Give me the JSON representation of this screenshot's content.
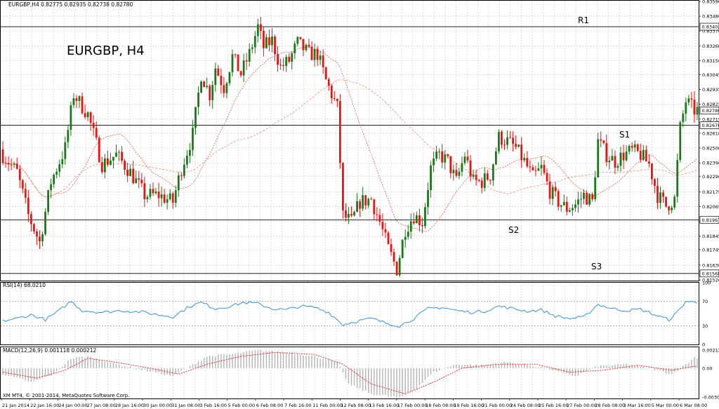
{
  "header": {
    "info": "EURGBP,H4  0.82775 0.82935 0.82738 0.82780",
    "big_title": "EURGBP, H4"
  },
  "footer": {
    "copyright": "XM MT4, © 2001-2014, MetaQuotes Software Corp."
  },
  "colors": {
    "bull": "#1a7a1a",
    "bear": "#ee1111",
    "grid": "#c8c8c8",
    "ma": "#e06040",
    "rsi": "#3b8fd9",
    "hist": "#b4b4b4",
    "signal": "#dd2222"
  },
  "chart_data": [
    {
      "type": "candlestick",
      "title": "EURGBP, H4",
      "ylim": [
        0.8152,
        0.8359
      ],
      "y_ticks": [
        "0.83590",
        "0.83480",
        "0.83370",
        "0.83260",
        "0.83150",
        "0.83045",
        "0.82935",
        "0.82825",
        "0.82715",
        "0.82610",
        "0.82500",
        "0.82390",
        "0.82290",
        "0.82175",
        "0.82065",
        "0.81955",
        "0.81845",
        "0.81745",
        "0.81630",
        "0.81520"
      ],
      "current_price": {
        "label": "0.82780",
        "value": 0.8278
      },
      "levels": [
        {
          "name": "R1",
          "label": "0.83402",
          "value": 0.83402
        },
        {
          "name": "S1",
          "label": "0.82670",
          "value": 0.8267
        },
        {
          "name": "S2",
          "label": "0.81967",
          "value": 0.81967
        },
        {
          "name": "S3",
          "label": "0.81568",
          "value": 0.81568
        }
      ],
      "x_labels": [
        "21 Jan 2014",
        "22 Jan 16:00",
        "24 Jan 00:00",
        "27 Jan 08:00",
        "28 Jan 16:00",
        "30 Jan 00:00",
        "31 Jan 08:00",
        "3 Feb 16:00",
        "5 Feb 00:00",
        "6 Feb 08:00",
        "7 Feb 16:00",
        "11 Feb 00:00",
        "12 Feb 08:00",
        "13 Feb 16:00",
        "17 Feb 00:00",
        "18 Feb 08:00",
        "19 Feb 16:00",
        "21 Feb 00:00",
        "24 Feb 08:00",
        "25 Feb 16:00",
        "27 Feb 00:00",
        "28 Feb 08:00",
        "3 Mar 16:00",
        "5 Mar 00:00",
        "6 Mar 08:00"
      ],
      "close_path": [
        {
          "i": 0,
          "v": 0.8245
        },
        {
          "i": 5,
          "v": 0.8232
        },
        {
          "i": 9,
          "v": 0.82
        },
        {
          "i": 13,
          "v": 0.818
        },
        {
          "i": 17,
          "v": 0.8225
        },
        {
          "i": 22,
          "v": 0.825
        },
        {
          "i": 25,
          "v": 0.829
        },
        {
          "i": 30,
          "v": 0.8275
        },
        {
          "i": 35,
          "v": 0.8238
        },
        {
          "i": 40,
          "v": 0.8245
        },
        {
          "i": 45,
          "v": 0.8232
        },
        {
          "i": 50,
          "v": 0.8215
        },
        {
          "i": 55,
          "v": 0.8215
        },
        {
          "i": 60,
          "v": 0.821
        },
        {
          "i": 63,
          "v": 0.8235
        },
        {
          "i": 67,
          "v": 0.826
        },
        {
          "i": 70,
          "v": 0.8305
        },
        {
          "i": 73,
          "v": 0.829
        },
        {
          "i": 75,
          "v": 0.831
        },
        {
          "i": 78,
          "v": 0.8295
        },
        {
          "i": 81,
          "v": 0.8318
        },
        {
          "i": 84,
          "v": 0.8305
        },
        {
          "i": 87,
          "v": 0.832
        },
        {
          "i": 90,
          "v": 0.834
        },
        {
          "i": 92,
          "v": 0.8325
        },
        {
          "i": 95,
          "v": 0.833
        },
        {
          "i": 98,
          "v": 0.831
        },
        {
          "i": 101,
          "v": 0.8315
        },
        {
          "i": 104,
          "v": 0.8328
        },
        {
          "i": 108,
          "v": 0.832
        },
        {
          "i": 111,
          "v": 0.832
        },
        {
          "i": 114,
          "v": 0.83
        },
        {
          "i": 118,
          "v": 0.828
        },
        {
          "i": 120,
          "v": 0.82
        },
        {
          "i": 123,
          "v": 0.8195
        },
        {
          "i": 126,
          "v": 0.821
        },
        {
          "i": 130,
          "v": 0.8212
        },
        {
          "i": 133,
          "v": 0.8195
        },
        {
          "i": 136,
          "v": 0.8175
        },
        {
          "i": 139,
          "v": 0.816
        },
        {
          "i": 142,
          "v": 0.819
        },
        {
          "i": 145,
          "v": 0.82
        },
        {
          "i": 148,
          "v": 0.8195
        },
        {
          "i": 151,
          "v": 0.8235
        },
        {
          "i": 154,
          "v": 0.8245
        },
        {
          "i": 157,
          "v": 0.824
        },
        {
          "i": 160,
          "v": 0.8225
        },
        {
          "i": 163,
          "v": 0.8245
        },
        {
          "i": 166,
          "v": 0.8225
        },
        {
          "i": 169,
          "v": 0.8225
        },
        {
          "i": 172,
          "v": 0.823
        },
        {
          "i": 175,
          "v": 0.8258
        },
        {
          "i": 178,
          "v": 0.8255
        },
        {
          "i": 181,
          "v": 0.825
        },
        {
          "i": 184,
          "v": 0.824
        },
        {
          "i": 187,
          "v": 0.8228
        },
        {
          "i": 190,
          "v": 0.8235
        },
        {
          "i": 193,
          "v": 0.8218
        },
        {
          "i": 196,
          "v": 0.821
        },
        {
          "i": 199,
          "v": 0.8205
        },
        {
          "i": 202,
          "v": 0.8208
        },
        {
          "i": 205,
          "v": 0.8215
        },
        {
          "i": 208,
          "v": 0.821
        },
        {
          "i": 210,
          "v": 0.8255
        },
        {
          "i": 213,
          "v": 0.8245
        },
        {
          "i": 216,
          "v": 0.824
        },
        {
          "i": 219,
          "v": 0.8245
        },
        {
          "i": 222,
          "v": 0.8248
        },
        {
          "i": 225,
          "v": 0.8245
        },
        {
          "i": 228,
          "v": 0.8238
        },
        {
          "i": 231,
          "v": 0.8215
        },
        {
          "i": 234,
          "v": 0.8207
        },
        {
          "i": 237,
          "v": 0.8212
        },
        {
          "i": 239,
          "v": 0.8265
        },
        {
          "i": 241,
          "v": 0.8285
        },
        {
          "i": 244,
          "v": 0.8278
        }
      ]
    },
    {
      "type": "line",
      "title": "RSI(14) 68.0210",
      "ylim": [
        0,
        100
      ],
      "y_ticks": [
        "100",
        "70",
        "30",
        "0"
      ],
      "path": [
        {
          "i": 0,
          "v": 38
        },
        {
          "i": 5,
          "v": 42
        },
        {
          "i": 10,
          "v": 48
        },
        {
          "i": 15,
          "v": 40
        },
        {
          "i": 20,
          "v": 55
        },
        {
          "i": 24,
          "v": 70
        },
        {
          "i": 28,
          "v": 55
        },
        {
          "i": 35,
          "v": 52
        },
        {
          "i": 42,
          "v": 55
        },
        {
          "i": 50,
          "v": 52
        },
        {
          "i": 55,
          "v": 48
        },
        {
          "i": 60,
          "v": 45
        },
        {
          "i": 66,
          "v": 62
        },
        {
          "i": 70,
          "v": 68
        },
        {
          "i": 75,
          "v": 58
        },
        {
          "i": 80,
          "v": 62
        },
        {
          "i": 85,
          "v": 68
        },
        {
          "i": 90,
          "v": 66
        },
        {
          "i": 95,
          "v": 58
        },
        {
          "i": 100,
          "v": 56
        },
        {
          "i": 105,
          "v": 62
        },
        {
          "i": 110,
          "v": 60
        },
        {
          "i": 115,
          "v": 52
        },
        {
          "i": 120,
          "v": 32
        },
        {
          "i": 125,
          "v": 38
        },
        {
          "i": 130,
          "v": 42
        },
        {
          "i": 135,
          "v": 35
        },
        {
          "i": 140,
          "v": 30
        },
        {
          "i": 145,
          "v": 42
        },
        {
          "i": 150,
          "v": 58
        },
        {
          "i": 155,
          "v": 60
        },
        {
          "i": 160,
          "v": 55
        },
        {
          "i": 165,
          "v": 52
        },
        {
          "i": 170,
          "v": 54
        },
        {
          "i": 175,
          "v": 62
        },
        {
          "i": 180,
          "v": 58
        },
        {
          "i": 185,
          "v": 54
        },
        {
          "i": 190,
          "v": 56
        },
        {
          "i": 195,
          "v": 46
        },
        {
          "i": 200,
          "v": 42
        },
        {
          "i": 205,
          "v": 44
        },
        {
          "i": 210,
          "v": 65
        },
        {
          "i": 215,
          "v": 58
        },
        {
          "i": 220,
          "v": 55
        },
        {
          "i": 225,
          "v": 57
        },
        {
          "i": 230,
          "v": 48
        },
        {
          "i": 235,
          "v": 40
        },
        {
          "i": 238,
          "v": 52
        },
        {
          "i": 241,
          "v": 70
        },
        {
          "i": 244,
          "v": 68
        }
      ]
    },
    {
      "type": "bar",
      "title": "MACD(12,26,9) 0.001118 0.000212",
      "ylim": [
        -0.00306,
        0.00212
      ],
      "y_ticks": [
        "0.00212",
        "0.00",
        "-0.003065"
      ],
      "histogram_path": [
        {
          "i": 0,
          "v": -0.0006
        },
        {
          "i": 10,
          "v": -0.0014
        },
        {
          "i": 18,
          "v": -0.0006
        },
        {
          "i": 24,
          "v": 0.001
        },
        {
          "i": 30,
          "v": 0.0012
        },
        {
          "i": 40,
          "v": 0.0004
        },
        {
          "i": 50,
          "v": -0.0002
        },
        {
          "i": 60,
          "v": -0.0008
        },
        {
          "i": 66,
          "v": 0.0002
        },
        {
          "i": 72,
          "v": 0.0012
        },
        {
          "i": 80,
          "v": 0.0014
        },
        {
          "i": 90,
          "v": 0.0018
        },
        {
          "i": 100,
          "v": 0.0016
        },
        {
          "i": 110,
          "v": 0.0012
        },
        {
          "i": 118,
          "v": 0.0006
        },
        {
          "i": 122,
          "v": -0.0016
        },
        {
          "i": 130,
          "v": -0.0026
        },
        {
          "i": 140,
          "v": -0.003
        },
        {
          "i": 146,
          "v": -0.002
        },
        {
          "i": 152,
          "v": -0.0004
        },
        {
          "i": 160,
          "v": 0.0004
        },
        {
          "i": 170,
          "v": 0.0003
        },
        {
          "i": 178,
          "v": 0.0006
        },
        {
          "i": 186,
          "v": 0.0003
        },
        {
          "i": 194,
          "v": -0.0002
        },
        {
          "i": 202,
          "v": -0.0008
        },
        {
          "i": 210,
          "v": 0.0002
        },
        {
          "i": 220,
          "v": 0.0004
        },
        {
          "i": 228,
          "v": 0.0
        },
        {
          "i": 236,
          "v": -0.0006
        },
        {
          "i": 242,
          "v": 0.0006
        },
        {
          "i": 244,
          "v": 0.0011
        }
      ],
      "signal_path": [
        {
          "i": 0,
          "v": -0.0004
        },
        {
          "i": 12,
          "v": -0.001
        },
        {
          "i": 22,
          "v": -0.0002
        },
        {
          "i": 30,
          "v": 0.001
        },
        {
          "i": 40,
          "v": 0.0006
        },
        {
          "i": 52,
          "v": 0.0
        },
        {
          "i": 62,
          "v": -0.0006
        },
        {
          "i": 72,
          "v": 0.0004
        },
        {
          "i": 84,
          "v": 0.0012
        },
        {
          "i": 96,
          "v": 0.0016
        },
        {
          "i": 110,
          "v": 0.0014
        },
        {
          "i": 120,
          "v": 0.0004
        },
        {
          "i": 130,
          "v": -0.0016
        },
        {
          "i": 142,
          "v": -0.0026
        },
        {
          "i": 152,
          "v": -0.0014
        },
        {
          "i": 162,
          "v": 0.0
        },
        {
          "i": 174,
          "v": 0.0004
        },
        {
          "i": 188,
          "v": 0.0004
        },
        {
          "i": 200,
          "v": -0.0004
        },
        {
          "i": 212,
          "v": -0.0002
        },
        {
          "i": 224,
          "v": 0.0003
        },
        {
          "i": 236,
          "v": -0.0002
        },
        {
          "i": 244,
          "v": 0.0002
        }
      ]
    }
  ]
}
